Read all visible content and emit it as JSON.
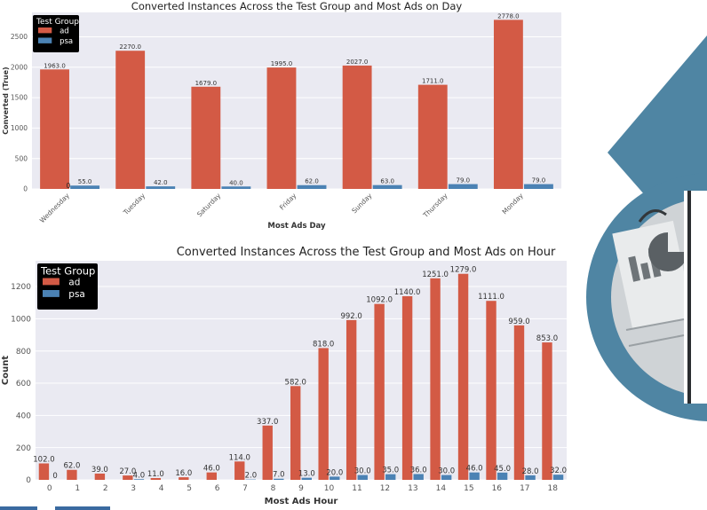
{
  "colors": {
    "ad": "#d35a45",
    "psa": "#4b82b4",
    "plot_bg": "#eaeaf2",
    "grid": "#ffffff",
    "legend_bg": "#000000",
    "deco_blue": "#4f85a3"
  },
  "decoration": {
    "image": "report-documents-icon"
  },
  "chart_data": [
    {
      "type": "bar",
      "title": "Converted Instances Across the Test Group and Most Ads on Day",
      "xlabel": "Most Ads Day",
      "ylabel": "Converted (True)",
      "categories": [
        "Wednesday",
        "Tuesday",
        "Saturday",
        "Friday",
        "Sunday",
        "Thursday",
        "Monday"
      ],
      "series": [
        {
          "name": "ad",
          "values": [
            1963.0,
            2270.0,
            1679.0,
            1995.0,
            2027.0,
            1711.0,
            2778.0
          ],
          "labels": [
            "1963.0",
            "2270.0",
            "1679.0",
            "1995.0",
            "2027.0",
            "1711.0",
            "2778.0"
          ]
        },
        {
          "name": "psa",
          "values": [
            55.0,
            42.0,
            40.0,
            62.0,
            63.0,
            79.0,
            79.0
          ],
          "labels": [
            "55.0",
            "42.0",
            "40.0",
            "62.0",
            "63.0",
            "79.0",
            "79.0"
          ]
        }
      ],
      "extra_labels": [
        {
          "category": "Wednesday",
          "text": "0"
        }
      ],
      "yticks": [
        "0",
        "500",
        "1000",
        "1500",
        "2000",
        "2500"
      ],
      "ylim": [
        0,
        2900
      ],
      "legend": {
        "title": "Test Group",
        "placement": "top-left"
      },
      "grid": true
    },
    {
      "type": "bar",
      "title": "Converted Instances Across the Test Group and Most Ads on Hour",
      "xlabel": "Most Ads Hour",
      "ylabel": "Count",
      "categories": [
        "0",
        "1",
        "2",
        "3",
        "4",
        "5",
        "6",
        "7",
        "8",
        "9",
        "10",
        "11",
        "12",
        "13",
        "14",
        "15",
        "16",
        "17",
        "18"
      ],
      "series": [
        {
          "name": "ad",
          "values": [
            102,
            62,
            39,
            27,
            11,
            16,
            46,
            114,
            337,
            582,
            818,
            992,
            1092,
            1140,
            1251,
            1279,
            1111,
            959,
            853
          ],
          "labels": [
            "102.0",
            "62.0",
            "39.0",
            "27.0",
            "11.0",
            "16.0",
            "46.0",
            "114.0",
            "337.0",
            "582.0",
            "818.0",
            "992.0",
            "1092.0",
            "1140.0",
            "1251.0",
            "1279.0",
            "1111.0",
            "959.0",
            "853.0"
          ]
        },
        {
          "name": "psa",
          "values": [
            0,
            0,
            0,
            4,
            0,
            0,
            0,
            2,
            7,
            13,
            20,
            30,
            35,
            36,
            30,
            46,
            45,
            28,
            32
          ],
          "labels": [
            "0",
            "",
            "",
            "4.0",
            "",
            "",
            "",
            "2.0",
            "7.0",
            "13.0",
            "20.0",
            "30.0",
            "35.0",
            "36.0",
            "30.0",
            "46.0",
            "45.0",
            "28.0",
            "32.0"
          ]
        }
      ],
      "yticks": [
        "0",
        "200",
        "400",
        "600",
        "800",
        "1000",
        "1200"
      ],
      "ylim": [
        0,
        1360
      ],
      "legend": {
        "title": "Test Group",
        "placement": "top-left"
      },
      "grid": true
    }
  ]
}
